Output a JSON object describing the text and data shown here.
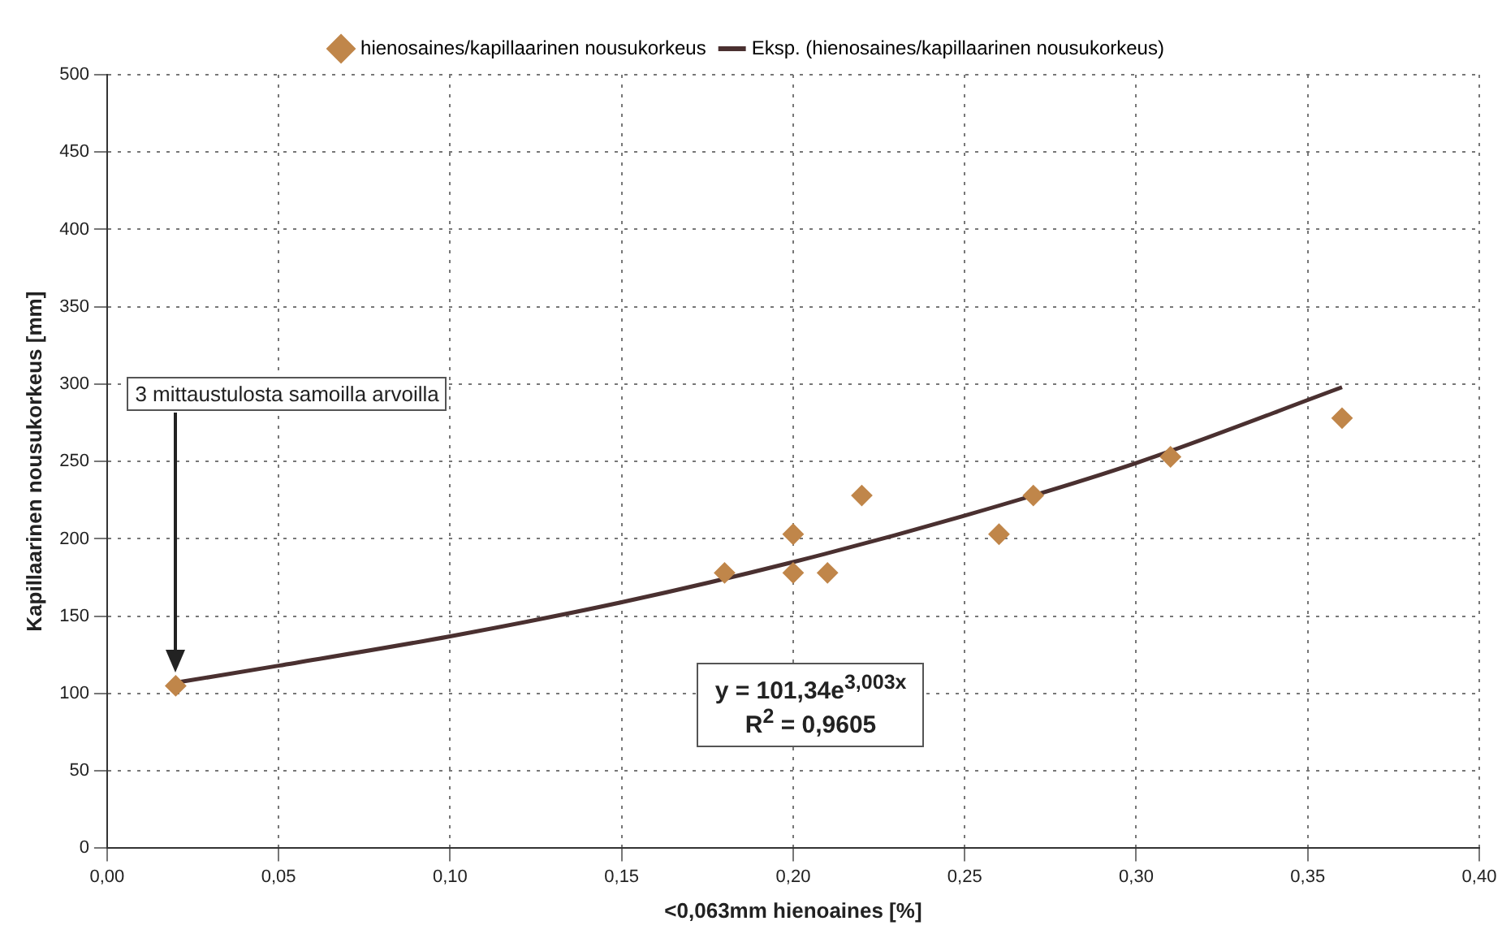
{
  "chart_data": {
    "type": "scatter",
    "xlabel": "<0,063mm hienoaines [%]",
    "ylabel": "Kapillaarinen nousukorkeus [mm]",
    "series": [
      {
        "name": "hienosaines/kapillaarinen nousukorkeus",
        "color": "#c0864a",
        "marker": "diamond",
        "x": [
          0.02,
          0.18,
          0.2,
          0.2,
          0.21,
          0.22,
          0.26,
          0.27,
          0.31,
          0.36
        ],
        "values": [
          105,
          178,
          203,
          178,
          178,
          228,
          203,
          228,
          253,
          278
        ]
      },
      {
        "name": "Eksp. (hienosaines/kapillaarinen nousukorkeus)",
        "type": "line",
        "color": "#4a3030",
        "marker": "none",
        "x": [
          0.02,
          0.05,
          0.1,
          0.15,
          0.2,
          0.25,
          0.3,
          0.36
        ],
        "values": [
          107,
          118,
          137,
          159,
          185,
          215,
          249,
          298
        ]
      }
    ],
    "xlim": [
      0,
      0.4
    ],
    "xticks": [
      {
        "value": 0,
        "label": "0,00"
      },
      {
        "value": 0.05,
        "label": "0,05"
      },
      {
        "value": 0.1,
        "label": "0,10"
      },
      {
        "value": 0.15,
        "label": "0,15"
      },
      {
        "value": 0.2,
        "label": "0,20"
      },
      {
        "value": 0.25,
        "label": "0,25"
      },
      {
        "value": 0.3,
        "label": "0,30"
      },
      {
        "value": 0.35,
        "label": "0,35"
      },
      {
        "value": 0.4,
        "label": "0,40"
      }
    ],
    "ylim": [
      0,
      500
    ],
    "yticks": [
      0,
      50,
      100,
      150,
      200,
      250,
      300,
      350,
      400,
      450,
      500
    ],
    "grid": true,
    "legend": "top",
    "annotations": [
      "3 mittaustulosta samoilla arvoilla",
      "y = 101,34e$^{3,003x}$",
      "R$^{2}$ = 0,9605"
    ]
  }
}
